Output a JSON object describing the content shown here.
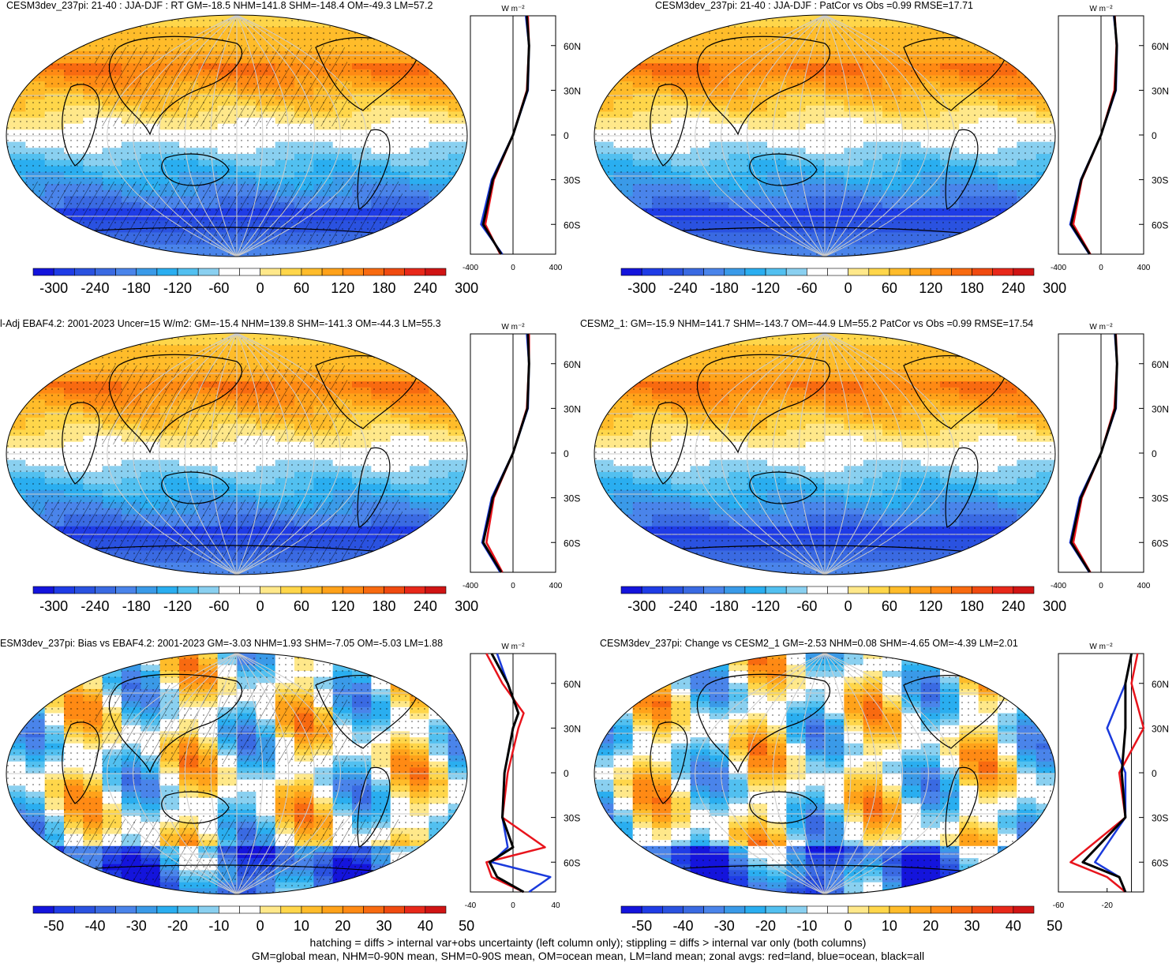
{
  "colors": {
    "ocean_grid": "#cccccc",
    "land_outline": "#000000",
    "red_land": "#e8141c",
    "blue_ocean": "#1a3adc",
    "black_all": "#000000",
    "palette": [
      "#1414dc",
      "#1f3ce6",
      "#2a52e0",
      "#3a6ae2",
      "#4a84ea",
      "#3a9ae8",
      "#2aaef0",
      "#52c0f0",
      "#8ad0f0",
      "#ffffff",
      "#ffffff",
      "#ffe88a",
      "#ffd64a",
      "#ffbc2a",
      "#ffa21a",
      "#ff8a14",
      "#f86a10",
      "#f04a10",
      "#e8281a",
      "#d01414"
    ]
  },
  "panels": [
    {
      "title": "CESM3dev_237pi: 21-40 : JJA-DJF : RT GM=-18.5 NHM=141.8 SHM=-148.4 OM=-49.3 LM=57.2",
      "cbar_ticks": [
        "-300",
        "-240",
        "-180",
        "-120",
        "-60",
        "0",
        "60",
        "120",
        "180",
        "240",
        "300"
      ],
      "zonal_xticks": [
        "-400",
        "0",
        "400"
      ],
      "zonal_units": "W m⁻²",
      "kind": "abs",
      "hatch": true
    },
    {
      "title": "CESM3dev_237pi: 21-40 : JJA-DJF : PatCor vs Obs =0.99 RMSE=17.71",
      "cbar_ticks": [
        "-300",
        "-240",
        "-180",
        "-120",
        "-60",
        "0",
        "60",
        "120",
        "180",
        "240",
        "300"
      ],
      "zonal_xticks": [
        "-400",
        "0",
        "400"
      ],
      "zonal_units": "W m⁻²",
      "kind": "abs",
      "hatch": false
    },
    {
      "title": "l-Adj EBAF4.2: 2001-2023 Uncer=15 W/m2: GM=-15.4 NHM=139.8 SHM=-141.3 OM=-44.3 LM=55.3",
      "cbar_ticks": [
        "-300",
        "-240",
        "-180",
        "-120",
        "-60",
        "0",
        "60",
        "120",
        "180",
        "240",
        "300"
      ],
      "zonal_xticks": [
        "-400",
        "0",
        "400"
      ],
      "zonal_units": "W m⁻²",
      "kind": "abs",
      "hatch": true
    },
    {
      "title": "CESM2_1: GM=-15.9 NHM=141.7 SHM=-143.7 OM=-44.9 LM=55.2 PatCor vs Obs =0.99 RMSE=17.54",
      "cbar_ticks": [
        "-300",
        "-240",
        "-180",
        "-120",
        "-60",
        "0",
        "60",
        "120",
        "180",
        "240",
        "300"
      ],
      "zonal_xticks": [
        "-400",
        "0",
        "400"
      ],
      "zonal_units": "W m⁻²",
      "kind": "abs",
      "hatch": false
    },
    {
      "title": "ESM3dev_237pi: Bias vs EBAF4.2: 2001-2023 GM=-3.03 NHM=1.93 SHM=-7.05 OM=-5.03 LM=1.88",
      "cbar_ticks": [
        "-50",
        "-40",
        "-30",
        "-20",
        "-10",
        "0",
        "10",
        "20",
        "30",
        "40",
        "50"
      ],
      "zonal_xticks": [
        "-40",
        "0",
        "40"
      ],
      "zonal_units": "W m⁻²",
      "kind": "diff",
      "hatch": true
    },
    {
      "title": "CESM3dev_237pi: Change vs CESM2_1 GM=-2.53 NHM=0.08 SHM=-4.65 OM=-4.39 LM=2.01",
      "cbar_ticks": [
        "-50",
        "-40",
        "-30",
        "-20",
        "-10",
        "0",
        "10",
        "20",
        "30",
        "40",
        "50"
      ],
      "zonal_xticks": [
        "-60",
        "-20"
      ],
      "zonal_units": "W m⁻²",
      "kind": "diff2",
      "hatch": false
    }
  ],
  "lat_ticks": [
    "60N",
    "30N",
    "0",
    "30S",
    "60S"
  ],
  "footer": {
    "line1": "hatching = diffs > internal var+obs uncertainty (left column only); stippling = diffs > internal var only (both columns)",
    "line2": "GM=global mean, NHM=0-90N mean, SHM=0-90S mean, OM=ocean mean, LM=land mean; zonal avgs: red=land, blue=ocean, black=all"
  },
  "chart_data": [
    {
      "type": "line",
      "title": "CESM3dev_237pi: 21-40 : JJA-DJF : RT GM=-18.5 NHM=141.8 SHM=-148.4 OM=-49.3 LM=57.2",
      "xlabel": "W m-2",
      "xlim": [
        -400,
        400
      ],
      "y_lat": [
        80,
        60,
        30,
        0,
        -30,
        -60,
        -80
      ],
      "series": [
        {
          "name": "land",
          "values": [
            140,
            150,
            130,
            0,
            -180,
            -260,
            -120
          ]
        },
        {
          "name": "ocean",
          "values": [
            120,
            150,
            140,
            0,
            -200,
            -300,
            -100
          ]
        },
        {
          "name": "all",
          "values": [
            130,
            150,
            135,
            0,
            -190,
            -280,
            -110
          ]
        }
      ]
    },
    {
      "type": "line",
      "title": "CESM3dev_237pi: 21-40 : JJA-DJF : PatCor vs Obs =0.99 RMSE=17.71",
      "xlabel": "W m-2",
      "xlim": [
        -400,
        400
      ],
      "y_lat": [
        80,
        60,
        30,
        0,
        -30,
        -60,
        -80
      ],
      "series": [
        {
          "name": "land",
          "values": [
            130,
            145,
            125,
            0,
            -180,
            -260,
            -100
          ]
        },
        {
          "name": "ocean",
          "values": [
            120,
            150,
            140,
            0,
            -190,
            -290,
            -110
          ]
        },
        {
          "name": "all",
          "values": [
            125,
            148,
            135,
            0,
            -185,
            -280,
            -105
          ]
        }
      ]
    },
    {
      "type": "line",
      "title": "l-Adj EBAF4.2: 2001-2023 Uncer=15 W/m2: GM=-15.4 NHM=139.8 SHM=-141.3 OM=-44.3 LM=55.3",
      "xlabel": "W m-2",
      "xlim": [
        -400,
        400
      ],
      "y_lat": [
        80,
        60,
        30,
        0,
        -30,
        -60,
        -80
      ],
      "series": [
        {
          "name": "land",
          "values": [
            150,
            150,
            130,
            0,
            -180,
            -250,
            -100
          ]
        },
        {
          "name": "ocean",
          "values": [
            130,
            150,
            140,
            0,
            -200,
            -290,
            -120
          ]
        },
        {
          "name": "all",
          "values": [
            140,
            150,
            135,
            0,
            -190,
            -280,
            -110
          ]
        }
      ]
    },
    {
      "type": "line",
      "title": "CESM2_1: GM=-15.9 NHM=141.7 SHM=-143.7 OM=-44.9 LM=55.2 PatCor vs Obs =0.99 RMSE=17.54",
      "xlabel": "W m-2",
      "xlim": [
        -400,
        400
      ],
      "y_lat": [
        80,
        60,
        30,
        0,
        -30,
        -60,
        -80
      ],
      "series": [
        {
          "name": "land",
          "values": [
            140,
            150,
            125,
            0,
            -180,
            -260,
            -100
          ]
        },
        {
          "name": "ocean",
          "values": [
            130,
            150,
            140,
            0,
            -200,
            -290,
            -110
          ]
        },
        {
          "name": "all",
          "values": [
            135,
            150,
            135,
            0,
            -190,
            -280,
            -105
          ]
        }
      ]
    },
    {
      "type": "line",
      "title": "ESM3dev_237pi: Bias vs EBAF4.2: 2001-2023 GM=-3.03 NHM=1.93 SHM=-7.05 OM=-5.03 LM=1.88",
      "xlabel": "W m-2",
      "xlim": [
        -40,
        40
      ],
      "y_lat": [
        80,
        60,
        40,
        30,
        0,
        -30,
        -50,
        -60,
        -70,
        -80
      ],
      "series": [
        {
          "name": "land",
          "values": [
            -25,
            -10,
            10,
            5,
            -5,
            -10,
            30,
            -25,
            -20,
            10
          ]
        },
        {
          "name": "ocean",
          "values": [
            -15,
            -5,
            5,
            0,
            -8,
            -10,
            -5,
            -20,
            35,
            15
          ]
        },
        {
          "name": "all",
          "values": [
            -20,
            -5,
            5,
            0,
            -8,
            -10,
            0,
            -22,
            -15,
            10
          ]
        }
      ]
    },
    {
      "type": "line",
      "title": "CESM3dev_237pi: Change vs CESM2_1 GM=-2.53 NHM=0.08 SHM=-4.65 OM=-4.39 LM=2.01",
      "xlabel": "W m-2",
      "xlim": [
        -60,
        10
      ],
      "y_lat": [
        80,
        60,
        30,
        0,
        -30,
        -60,
        -70,
        -80
      ],
      "series": [
        {
          "name": "land",
          "values": [
            5,
            0,
            10,
            -10,
            -5,
            -50,
            -20,
            -5
          ]
        },
        {
          "name": "ocean",
          "values": [
            0,
            -5,
            -20,
            -5,
            -5,
            -30,
            -10,
            -5
          ]
        },
        {
          "name": "all",
          "values": [
            0,
            -5,
            -5,
            -8,
            -5,
            -40,
            -10,
            -5
          ]
        }
      ]
    }
  ]
}
